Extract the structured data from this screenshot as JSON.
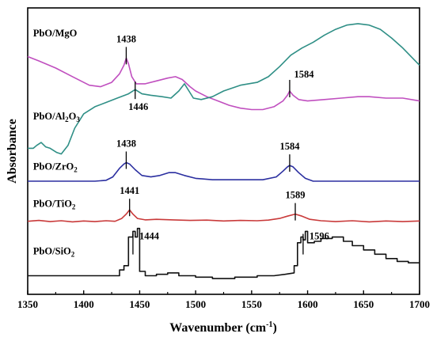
{
  "chart_data": {
    "type": "line",
    "xlabel": "Wavenumber (cm",
    "xlabel_sup": "-1",
    "xlabel_close": ")",
    "ylabel": "Absorbance",
    "xlim": [
      1350,
      1700
    ],
    "ylim": [
      0,
      100
    ],
    "xticks": [
      1350,
      1400,
      1450,
      1500,
      1550,
      1600,
      1650,
      1700
    ],
    "series": [
      {
        "name": "PbO/MgO",
        "color": "#c04fbf",
        "label_x": 1352,
        "label_y": 90.0,
        "points": [
          [
            1350,
            83
          ],
          [
            1360,
            81.5
          ],
          [
            1375,
            79
          ],
          [
            1390,
            76
          ],
          [
            1405,
            73
          ],
          [
            1415,
            72.5
          ],
          [
            1425,
            74
          ],
          [
            1432,
            77
          ],
          [
            1436,
            80
          ],
          [
            1438,
            82.5
          ],
          [
            1440,
            80.5
          ],
          [
            1443,
            76
          ],
          [
            1447,
            73.5
          ],
          [
            1455,
            73.5
          ],
          [
            1465,
            74.5
          ],
          [
            1475,
            75.5
          ],
          [
            1482,
            76
          ],
          [
            1488,
            75
          ],
          [
            1495,
            72.5
          ],
          [
            1500,
            71
          ],
          [
            1510,
            69
          ],
          [
            1520,
            67.5
          ],
          [
            1530,
            66
          ],
          [
            1540,
            65
          ],
          [
            1550,
            64.5
          ],
          [
            1560,
            64.5
          ],
          [
            1570,
            65.5
          ],
          [
            1578,
            67.5
          ],
          [
            1582,
            69.5
          ],
          [
            1584,
            71
          ],
          [
            1587,
            69.5
          ],
          [
            1592,
            68
          ],
          [
            1600,
            67.5
          ],
          [
            1615,
            68
          ],
          [
            1630,
            68.5
          ],
          [
            1645,
            69
          ],
          [
            1655,
            69
          ],
          [
            1670,
            68.5
          ],
          [
            1685,
            68.5
          ],
          [
            1700,
            67.5
          ]
        ],
        "peaks": [
          {
            "x": 1438,
            "label": "1438",
            "label_pos": "above"
          },
          {
            "x": 1584,
            "label": "1584",
            "label_pos": "above-right"
          }
        ]
      },
      {
        "name": "PbO/Al2O3",
        "name_base": "PbO/Al",
        "name_sub": "2",
        "name_mid": "O",
        "name_sub2": "3",
        "color": "#2f8f86",
        "label_x": 1352,
        "label_y": 61.0,
        "points": [
          [
            1350,
            51
          ],
          [
            1355,
            51
          ],
          [
            1358,
            52
          ],
          [
            1362,
            53
          ],
          [
            1366,
            51.5
          ],
          [
            1370,
            51
          ],
          [
            1376,
            49.5
          ],
          [
            1380,
            49
          ],
          [
            1386,
            52
          ],
          [
            1392,
            58
          ],
          [
            1400,
            63
          ],
          [
            1410,
            65.5
          ],
          [
            1420,
            67
          ],
          [
            1430,
            68.5
          ],
          [
            1440,
            70
          ],
          [
            1446,
            71.5
          ],
          [
            1452,
            70
          ],
          [
            1460,
            69.5
          ],
          [
            1470,
            69
          ],
          [
            1478,
            68.5
          ],
          [
            1485,
            71
          ],
          [
            1490,
            73.5
          ],
          [
            1494,
            71
          ],
          [
            1498,
            68.5
          ],
          [
            1505,
            68
          ],
          [
            1515,
            69
          ],
          [
            1525,
            71
          ],
          [
            1540,
            73
          ],
          [
            1555,
            74
          ],
          [
            1565,
            76
          ],
          [
            1575,
            79.5
          ],
          [
            1585,
            83.5
          ],
          [
            1595,
            86
          ],
          [
            1605,
            88
          ],
          [
            1615,
            90.5
          ],
          [
            1625,
            92.5
          ],
          [
            1635,
            94
          ],
          [
            1645,
            94.5
          ],
          [
            1655,
            94
          ],
          [
            1665,
            92.5
          ],
          [
            1675,
            89.5
          ],
          [
            1685,
            86
          ],
          [
            1695,
            82
          ],
          [
            1700,
            80
          ]
        ],
        "peaks": [
          {
            "x": 1446,
            "label": "1446",
            "label_pos": "below"
          }
        ]
      },
      {
        "name": "PbO/ZrO2",
        "name_base": "PbO/ZrO",
        "name_sub": "2",
        "color": "#2b2fa0",
        "label_x": 1352,
        "label_y": 43.5,
        "points": [
          [
            1350,
            39.5
          ],
          [
            1370,
            39.5
          ],
          [
            1390,
            39.5
          ],
          [
            1410,
            39.5
          ],
          [
            1420,
            39.8
          ],
          [
            1426,
            41
          ],
          [
            1432,
            44
          ],
          [
            1436,
            45.5
          ],
          [
            1438,
            46
          ],
          [
            1441,
            45.5
          ],
          [
            1446,
            43.5
          ],
          [
            1452,
            41.5
          ],
          [
            1460,
            41
          ],
          [
            1468,
            41.5
          ],
          [
            1476,
            42.5
          ],
          [
            1482,
            42.5
          ],
          [
            1490,
            41.5
          ],
          [
            1500,
            40.5
          ],
          [
            1515,
            40
          ],
          [
            1530,
            40
          ],
          [
            1545,
            40
          ],
          [
            1560,
            40
          ],
          [
            1572,
            41
          ],
          [
            1578,
            43
          ],
          [
            1582,
            44.5
          ],
          [
            1584,
            45
          ],
          [
            1587,
            44.5
          ],
          [
            1592,
            42.5
          ],
          [
            1598,
            40.5
          ],
          [
            1605,
            39.5
          ],
          [
            1620,
            39.5
          ],
          [
            1640,
            39.5
          ],
          [
            1660,
            39.5
          ],
          [
            1680,
            39.5
          ],
          [
            1700,
            39.5
          ]
        ],
        "peaks": [
          {
            "x": 1438,
            "label": "1438",
            "label_pos": "above"
          },
          {
            "x": 1584,
            "label": "1584",
            "label_pos": "above"
          }
        ]
      },
      {
        "name": "PbO/TiO2",
        "name_base": "PbO/TiO",
        "name_sub": "2",
        "color": "#c93a3a",
        "label_x": 1352,
        "label_y": 30.5,
        "points": [
          [
            1350,
            25.5
          ],
          [
            1360,
            25.8
          ],
          [
            1370,
            25.4
          ],
          [
            1380,
            25.7
          ],
          [
            1390,
            25.3
          ],
          [
            1400,
            25.6
          ],
          [
            1410,
            25.4
          ],
          [
            1420,
            25.7
          ],
          [
            1428,
            25.5
          ],
          [
            1434,
            26.5
          ],
          [
            1438,
            28
          ],
          [
            1441,
            29.5
          ],
          [
            1444,
            28
          ],
          [
            1448,
            26.5
          ],
          [
            1455,
            26
          ],
          [
            1465,
            26.2
          ],
          [
            1480,
            26
          ],
          [
            1495,
            25.8
          ],
          [
            1510,
            25.9
          ],
          [
            1525,
            25.6
          ],
          [
            1540,
            25.8
          ],
          [
            1555,
            25.7
          ],
          [
            1565,
            25.9
          ],
          [
            1575,
            26.5
          ],
          [
            1582,
            27.3
          ],
          [
            1589,
            28
          ],
          [
            1595,
            27.3
          ],
          [
            1602,
            26.2
          ],
          [
            1612,
            25.7
          ],
          [
            1625,
            25.4
          ],
          [
            1640,
            25.7
          ],
          [
            1655,
            25.3
          ],
          [
            1670,
            25.6
          ],
          [
            1685,
            25.4
          ],
          [
            1700,
            25.6
          ]
        ],
        "peaks": [
          {
            "x": 1441,
            "label": "1441",
            "label_pos": "above"
          },
          {
            "x": 1589,
            "label": "1589",
            "label_pos": "above"
          }
        ]
      },
      {
        "name": "PbO/SiO2",
        "name_base": "PbO/SiO",
        "name_sub": "2",
        "color": "#111111",
        "label_x": 1352,
        "label_y": 14.0,
        "points": [
          [
            1350,
            6.5
          ],
          [
            1370,
            6.5
          ],
          [
            1390,
            6.5
          ],
          [
            1410,
            6.5
          ],
          [
            1425,
            6.5
          ],
          [
            1432,
            6.5
          ],
          [
            1432,
            8.5
          ],
          [
            1436,
            8.5
          ],
          [
            1436,
            10
          ],
          [
            1440,
            10
          ],
          [
            1440,
            20
          ],
          [
            1444,
            20
          ],
          [
            1444,
            22
          ],
          [
            1446,
            22
          ],
          [
            1446,
            20
          ],
          [
            1448,
            20
          ],
          [
            1448,
            23
          ],
          [
            1450,
            23
          ],
          [
            1450,
            8
          ],
          [
            1455,
            8
          ],
          [
            1455,
            6.5
          ],
          [
            1465,
            6.5
          ],
          [
            1465,
            7
          ],
          [
            1475,
            7
          ],
          [
            1475,
            7.5
          ],
          [
            1485,
            7.5
          ],
          [
            1485,
            6.5
          ],
          [
            1500,
            6.5
          ],
          [
            1500,
            6
          ],
          [
            1515,
            6
          ],
          [
            1515,
            5.5
          ],
          [
            1535,
            5.5
          ],
          [
            1535,
            6
          ],
          [
            1555,
            6
          ],
          [
            1555,
            6.5
          ],
          [
            1570,
            6.5
          ],
          [
            1580,
            7
          ],
          [
            1588,
            7.5
          ],
          [
            1588,
            10
          ],
          [
            1591,
            10
          ],
          [
            1591,
            18
          ],
          [
            1594,
            18
          ],
          [
            1594,
            20
          ],
          [
            1596,
            20
          ],
          [
            1596,
            19
          ],
          [
            1598,
            19
          ],
          [
            1598,
            22
          ],
          [
            1600,
            22
          ],
          [
            1600,
            18
          ],
          [
            1606,
            18
          ],
          [
            1606,
            18.5
          ],
          [
            1612,
            18.5
          ],
          [
            1612,
            19.5
          ],
          [
            1622,
            19.5
          ],
          [
            1622,
            20
          ],
          [
            1632,
            20
          ],
          [
            1632,
            18.5
          ],
          [
            1640,
            18.5
          ],
          [
            1640,
            17
          ],
          [
            1650,
            17
          ],
          [
            1650,
            15.5
          ],
          [
            1660,
            15.5
          ],
          [
            1660,
            14
          ],
          [
            1670,
            14
          ],
          [
            1670,
            12.5
          ],
          [
            1680,
            12.5
          ],
          [
            1680,
            11.5
          ],
          [
            1690,
            11.5
          ],
          [
            1690,
            11
          ],
          [
            1700,
            11
          ]
        ],
        "peaks": [
          {
            "x": 1444,
            "label": "1444",
            "label_pos": "right"
          },
          {
            "x": 1596,
            "label": "1596",
            "label_pos": "right"
          }
        ]
      }
    ]
  }
}
